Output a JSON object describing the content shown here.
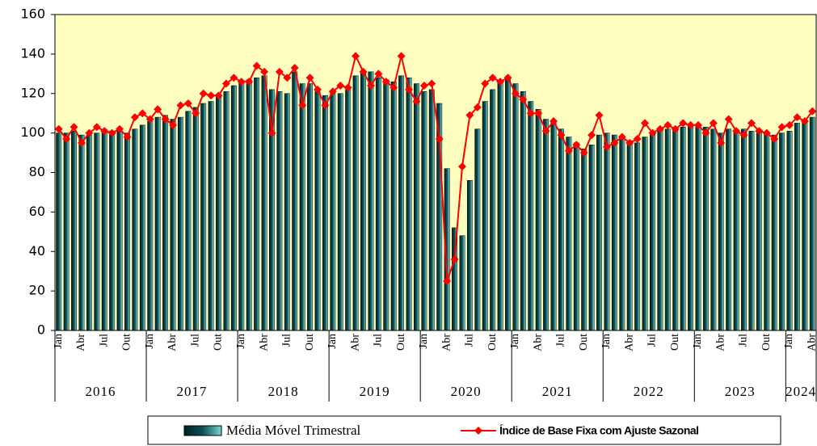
{
  "chart_data": {
    "type": "bar",
    "categories": [
      "Jan",
      null,
      null,
      "Abr",
      null,
      null,
      "Jul",
      null,
      null,
      "Out",
      null,
      null,
      "Jan",
      null,
      null,
      "Abr",
      null,
      null,
      "Jul",
      null,
      null,
      "Out",
      null,
      null,
      "Jan",
      null,
      null,
      "Abr",
      null,
      null,
      "Jul",
      null,
      null,
      "Out",
      null,
      null,
      "Jan",
      null,
      null,
      "Abr",
      null,
      null,
      "Jul",
      null,
      null,
      "Out",
      null,
      null,
      "Jan",
      null,
      null,
      "Abr",
      null,
      null,
      "Jul",
      null,
      null,
      "Out",
      null,
      null,
      "Jan",
      null,
      null,
      "Abr",
      null,
      null,
      "Jul",
      null,
      null,
      "Out",
      null,
      null,
      "Jan",
      null,
      null,
      "Abr",
      null,
      null,
      "Jul",
      null,
      null,
      "Out",
      null,
      null,
      "Jan",
      null,
      null,
      "Abr",
      null,
      null,
      "Jul",
      null,
      null,
      "Out",
      null,
      null,
      "Jan",
      null,
      null,
      "Abr"
    ],
    "years": [
      "2016",
      "2017",
      "2018",
      "2019",
      "2020",
      "2021",
      "2022",
      "2023",
      "2024"
    ],
    "series": [
      {
        "name": "Média Móvel Trimestral",
        "type": "bar",
        "color": "#0b4f57",
        "values": [
          100,
          100,
          101,
          99,
          99,
          100,
          101,
          101,
          101,
          100,
          102,
          104,
          106,
          108,
          109,
          107,
          108,
          111,
          113,
          115,
          116,
          119,
          121,
          124,
          126,
          127,
          128,
          129,
          122,
          121,
          120,
          131,
          125,
          125,
          121,
          119,
          120,
          120,
          122,
          129,
          131,
          131,
          128,
          127,
          126,
          129,
          128,
          125,
          121,
          122,
          115,
          82,
          52,
          48,
          76,
          102,
          116,
          122,
          126,
          127,
          125,
          121,
          116,
          112,
          107,
          106,
          102,
          98,
          95,
          92,
          94,
          99,
          100,
          99,
          97,
          96,
          95,
          98,
          100,
          102,
          102,
          103,
          103,
          104,
          104,
          103,
          102,
          100,
          102,
          101,
          102,
          101,
          101,
          100,
          99,
          100,
          101,
          105,
          106,
          108
        ]
      },
      {
        "name": "Índice de Base Fixa com Ajuste Sazonal",
        "type": "line",
        "color": "#ff0000",
        "values": [
          102,
          97,
          103,
          95,
          100,
          103,
          101,
          100,
          102,
          98,
          108,
          110,
          107,
          112,
          107,
          104,
          114,
          115,
          110,
          120,
          119,
          119,
          125,
          128,
          126,
          126,
          134,
          131,
          100,
          131,
          128,
          133,
          114,
          128,
          122,
          114,
          121,
          124,
          123,
          139,
          131,
          124,
          130,
          126,
          123,
          139,
          122,
          116,
          124,
          125,
          97,
          25,
          36,
          83,
          109,
          113,
          125,
          128,
          126,
          128,
          120,
          117,
          110,
          110,
          101,
          106,
          99,
          91,
          94,
          90,
          99,
          109,
          93,
          95,
          98,
          95,
          97,
          105,
          100,
          102,
          104,
          102,
          105,
          104,
          104,
          100,
          105,
          95,
          107,
          101,
          99,
          105,
          101,
          100,
          97,
          103,
          104,
          108,
          106,
          111
        ]
      }
    ],
    "ylim": [
      0,
      160
    ],
    "yticks": [
      0,
      20,
      40,
      60,
      80,
      100,
      120,
      140,
      160
    ],
    "plot_background": "#ffffc0"
  }
}
